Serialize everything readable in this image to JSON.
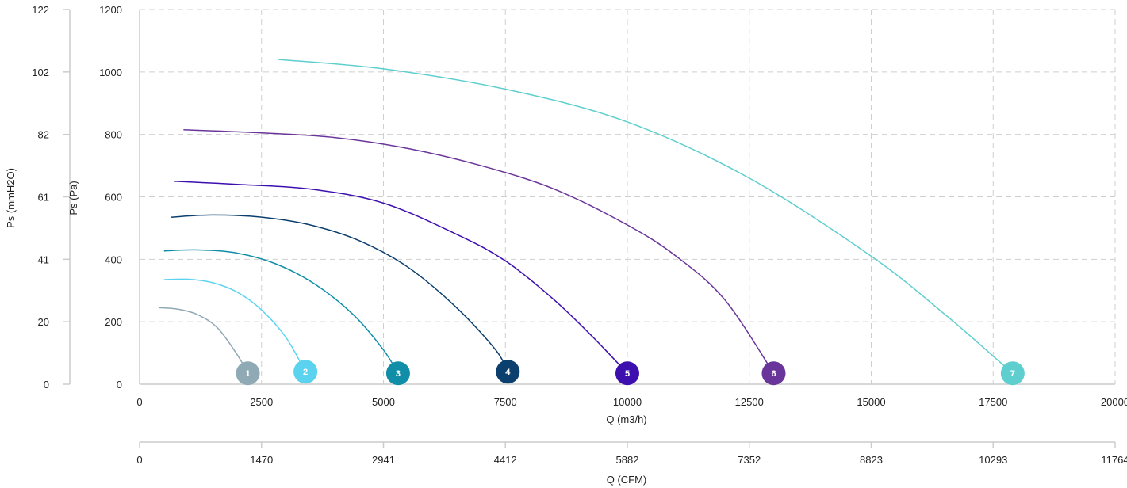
{
  "chart_data": {
    "type": "line",
    "xlabel": "Q (m3/h)",
    "x2label": "Q (CFM)",
    "ylabel": "Ps (Pa)",
    "y2label": "Ps (mmH2O)",
    "xlim": [
      0,
      20000
    ],
    "ylim": [
      0,
      1200
    ],
    "x_ticks": [
      "0",
      "2500",
      "5000",
      "7500",
      "10000",
      "12500",
      "15000",
      "17500",
      "20000"
    ],
    "x2_ticks": [
      "0",
      "1470",
      "2941",
      "4412",
      "5882",
      "7352",
      "8823",
      "10293",
      "11764"
    ],
    "y_ticks": [
      "0",
      "200",
      "400",
      "600",
      "800",
      "1000",
      "1200"
    ],
    "y2_ticks": [
      "0",
      "20",
      "41",
      "61",
      "82",
      "102",
      "122"
    ],
    "grid": true,
    "series": [
      {
        "name": "1",
        "color": "#8fa9b5",
        "x": [
          400,
          800,
          1200,
          1600,
          2000,
          2220
        ],
        "y": [
          245,
          240,
          222,
          180,
          95,
          35
        ]
      },
      {
        "name": "2",
        "color": "#5bd3ef",
        "x": [
          500,
          1000,
          1500,
          2000,
          2500,
          3000,
          3400
        ],
        "y": [
          335,
          336,
          325,
          295,
          238,
          150,
          40
        ]
      },
      {
        "name": "3",
        "color": "#108ea7",
        "x": [
          500,
          1200,
          2000,
          2800,
          3600,
          4400,
          5000,
          5300
        ],
        "y": [
          427,
          430,
          420,
          385,
          320,
          220,
          110,
          35
        ]
      },
      {
        "name": "4",
        "color": "#0b3f6e",
        "x": [
          650,
          1500,
          2500,
          3500,
          4500,
          5500,
          6500,
          7300,
          7550
        ],
        "y": [
          535,
          542,
          535,
          510,
          460,
          375,
          245,
          110,
          40
        ]
      },
      {
        "name": "5",
        "color": "#3d0fae",
        "x": [
          700,
          2000,
          3500,
          5000,
          6500,
          7500,
          8500,
          9300,
          10000
        ],
        "y": [
          650,
          640,
          625,
          580,
          480,
          395,
          270,
          150,
          35
        ]
      },
      {
        "name": "6",
        "color": "#6a359a",
        "x": [
          900,
          2500,
          4000,
          5500,
          7000,
          8500,
          10000,
          11000,
          12000,
          13000
        ],
        "y": [
          815,
          805,
          790,
          755,
          700,
          625,
          510,
          410,
          270,
          35
        ]
      },
      {
        "name": "7",
        "color": "#5fcece",
        "x": [
          2850,
          5000,
          7500,
          10000,
          12500,
          15000,
          16500,
          17500,
          17900
        ],
        "y": [
          1040,
          1010,
          945,
          840,
          660,
          410,
          225,
          90,
          35
        ]
      }
    ]
  }
}
